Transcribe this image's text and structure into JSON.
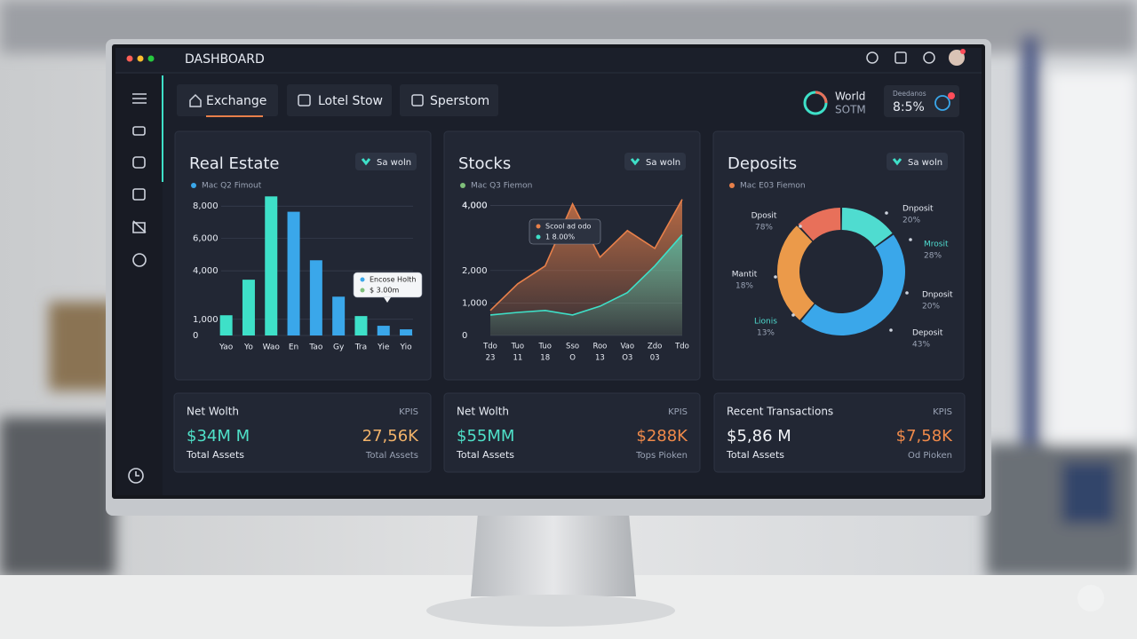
{
  "header": {
    "title": "DASHBOARD"
  },
  "tabs": [
    "Exchange",
    "Lotel Stow",
    "Sperstom"
  ],
  "widgets": {
    "world": {
      "title": "World",
      "subtitle": "SOTM"
    },
    "rate": {
      "label": "Deedanos",
      "value": "8:5%"
    }
  },
  "chart_data": [
    {
      "type": "bar",
      "title": "Real Estate",
      "badge": "Sa woln",
      "legend": "Mac Q2 Fimout",
      "legend_color": "#3aa7ea",
      "categories": [
        "Yao",
        "Yo",
        "Wao",
        "En",
        "Tao",
        "Gy",
        "Tra",
        "Yie",
        "Yio"
      ],
      "values": [
        1250,
        3450,
        8600,
        7650,
        4650,
        2400,
        1200,
        600,
        380
      ],
      "colors": [
        "#3ee0c8",
        "#3ee0c8",
        "#3ee0c8",
        "#3aa7ea",
        "#3aa7ea",
        "#3aa7ea",
        "#3ee0c8",
        "#3aa7ea",
        "#3aa7ea"
      ],
      "ylim": [
        0,
        9000
      ],
      "yticks": [
        {
          "value": 8000,
          "label": "8,000"
        },
        {
          "value": 6000,
          "label": "6,000"
        },
        {
          "value": 4000,
          "label": "4,000"
        },
        {
          "value": 1000,
          "label": "1,000"
        },
        0
      ],
      "grid": true,
      "tooltip": {
        "title": "Encose Holth",
        "text": "$ 3.00m"
      }
    },
    {
      "type": "area",
      "title": "Stocks",
      "badge": "Sa woln",
      "legend": "Mac Q3 Fiemon",
      "legend_color": "#7fbf7a",
      "categories": [
        "Tdo",
        "Tuo",
        "Tuo",
        "Sso",
        "Roo",
        "Vao",
        "Zdo",
        "Tdo"
      ],
      "categories_sub": [
        "23",
        "11",
        "18",
        "O",
        "13",
        "O3",
        "03",
        null
      ],
      "series": [
        {
          "color": "#e8804a",
          "values": [
            770,
            1590,
            2140,
            4050,
            2410,
            3230,
            2680,
            4190
          ]
        },
        {
          "color": "#3ee0c8",
          "values": [
            630,
            710,
            770,
            630,
            900,
            1320,
            2140,
            3100
          ]
        }
      ],
      "ylim": [
        0,
        5000
      ],
      "yticks": [
        {
          "value": 4000,
          "label": "4,000"
        },
        {
          "value": 4000,
          "label": "4,000"
        },
        {
          "value": 1000,
          "label": "1,000"
        },
        {
          "value": 2000,
          "label": "2,000"
        },
        0
      ],
      "grid": true,
      "tooltip": {
        "title": "Scool ad odo",
        "text": "1 8.00%"
      }
    },
    {
      "type": "pie",
      "title": "Deposits",
      "badge": "Sa woln",
      "legend": "Mac E03 Fiemon",
      "legend_color": "#e8804a",
      "categories": [
        null,
        null,
        null,
        null
      ],
      "values": [
        15,
        46,
        27,
        12
      ],
      "colors": [
        "#4fdcd0",
        "#3aa7ea",
        "#eb9a4a",
        "#e8705a"
      ],
      "annotations": [
        {
          "label": "Dposit",
          "text": "78%"
        },
        {
          "label": "Dnposit",
          "text": "20%"
        },
        {
          "label": "Mrosit",
          "text": "28%"
        },
        {
          "label": "Mantit",
          "text": "18%"
        },
        {
          "label": "Dnposit",
          "text": "20%"
        },
        {
          "label": "Lionis",
          "text": "13%"
        },
        {
          "label": "Deposit",
          "text": "43%"
        }
      ]
    }
  ],
  "kpi_cards": [
    {
      "title": "Net Wolth",
      "tag": "KPIS",
      "left_value": "$34M M",
      "left_label": "Total Assets",
      "right_value": "27,56K",
      "right_label": "Total Assets"
    },
    {
      "title": "Net Wolth",
      "tag": "KPIS",
      "left_value": "$55MM",
      "left_label": "Total Assets",
      "right_value": "$288K",
      "right_label": "Tops Pioken"
    },
    {
      "title": "Recent Transactions",
      "tag": "KPIS",
      "left_value": "$5,86 M",
      "left_label": "Total Assets",
      "right_value": "$7,58K",
      "right_label": "Od Pioken"
    }
  ]
}
